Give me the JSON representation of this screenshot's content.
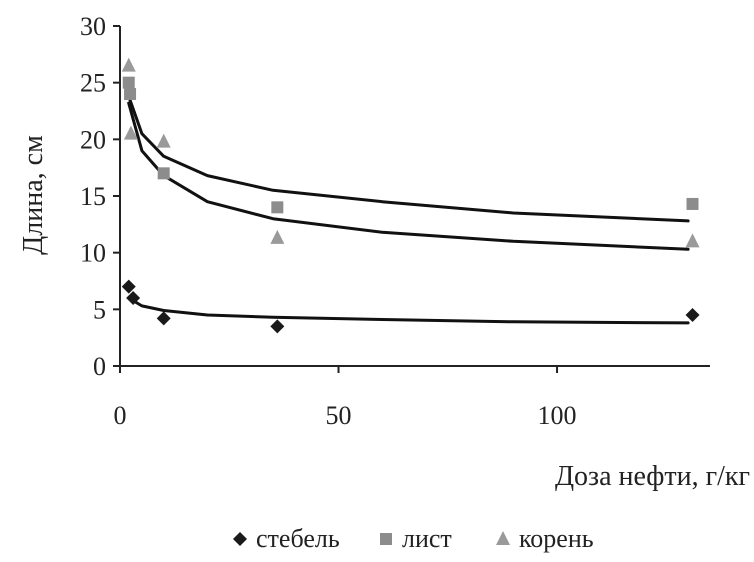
{
  "chart_data": {
    "type": "scatter",
    "title": "",
    "xlabel": "Доза нефти, г/кг",
    "ylabel": "Длина, см",
    "xlim": [
      0,
      135
    ],
    "ylim": [
      0,
      30
    ],
    "x_ticks": [
      "0",
      "50",
      "100"
    ],
    "y_ticks": [
      "0",
      "5",
      "10",
      "15",
      "20",
      "25",
      "30"
    ],
    "grid": false,
    "legend_position": "bottom",
    "series": [
      {
        "name": "стебель",
        "marker": "diamond",
        "color": "#1a1a1a",
        "points": [
          [
            2,
            7
          ],
          [
            3,
            6
          ],
          [
            10,
            4.2
          ],
          [
            36,
            3.5
          ],
          [
            131,
            4.5
          ]
        ],
        "trend": [
          [
            2,
            6.0
          ],
          [
            5,
            5.3
          ],
          [
            10,
            4.9
          ],
          [
            20,
            4.5
          ],
          [
            35,
            4.3
          ],
          [
            60,
            4.1
          ],
          [
            90,
            3.9
          ],
          [
            130,
            3.8
          ]
        ]
      },
      {
        "name": "лист",
        "marker": "square",
        "color": "#8c8c8c",
        "points": [
          [
            2,
            25
          ],
          [
            2.3,
            24
          ],
          [
            10,
            17
          ],
          [
            36,
            14
          ],
          [
            131,
            14.3
          ]
        ],
        "trend": [
          [
            2,
            23.8
          ],
          [
            5,
            20.5
          ],
          [
            10,
            18.5
          ],
          [
            20,
            16.8
          ],
          [
            35,
            15.5
          ],
          [
            60,
            14.5
          ],
          [
            90,
            13.5
          ],
          [
            130,
            12.8
          ]
        ]
      },
      {
        "name": "корень",
        "marker": "triangle",
        "color": "#9a9a9a",
        "points": [
          [
            2,
            26.5
          ],
          [
            2.5,
            20.5
          ],
          [
            10,
            19.8
          ],
          [
            36,
            11.3
          ],
          [
            131,
            11
          ]
        ],
        "trend": [
          [
            2,
            23.2
          ],
          [
            5,
            19.0
          ],
          [
            10,
            16.8
          ],
          [
            20,
            14.5
          ],
          [
            35,
            13.0
          ],
          [
            60,
            11.8
          ],
          [
            90,
            11.0
          ],
          [
            130,
            10.3
          ]
        ]
      }
    ]
  }
}
